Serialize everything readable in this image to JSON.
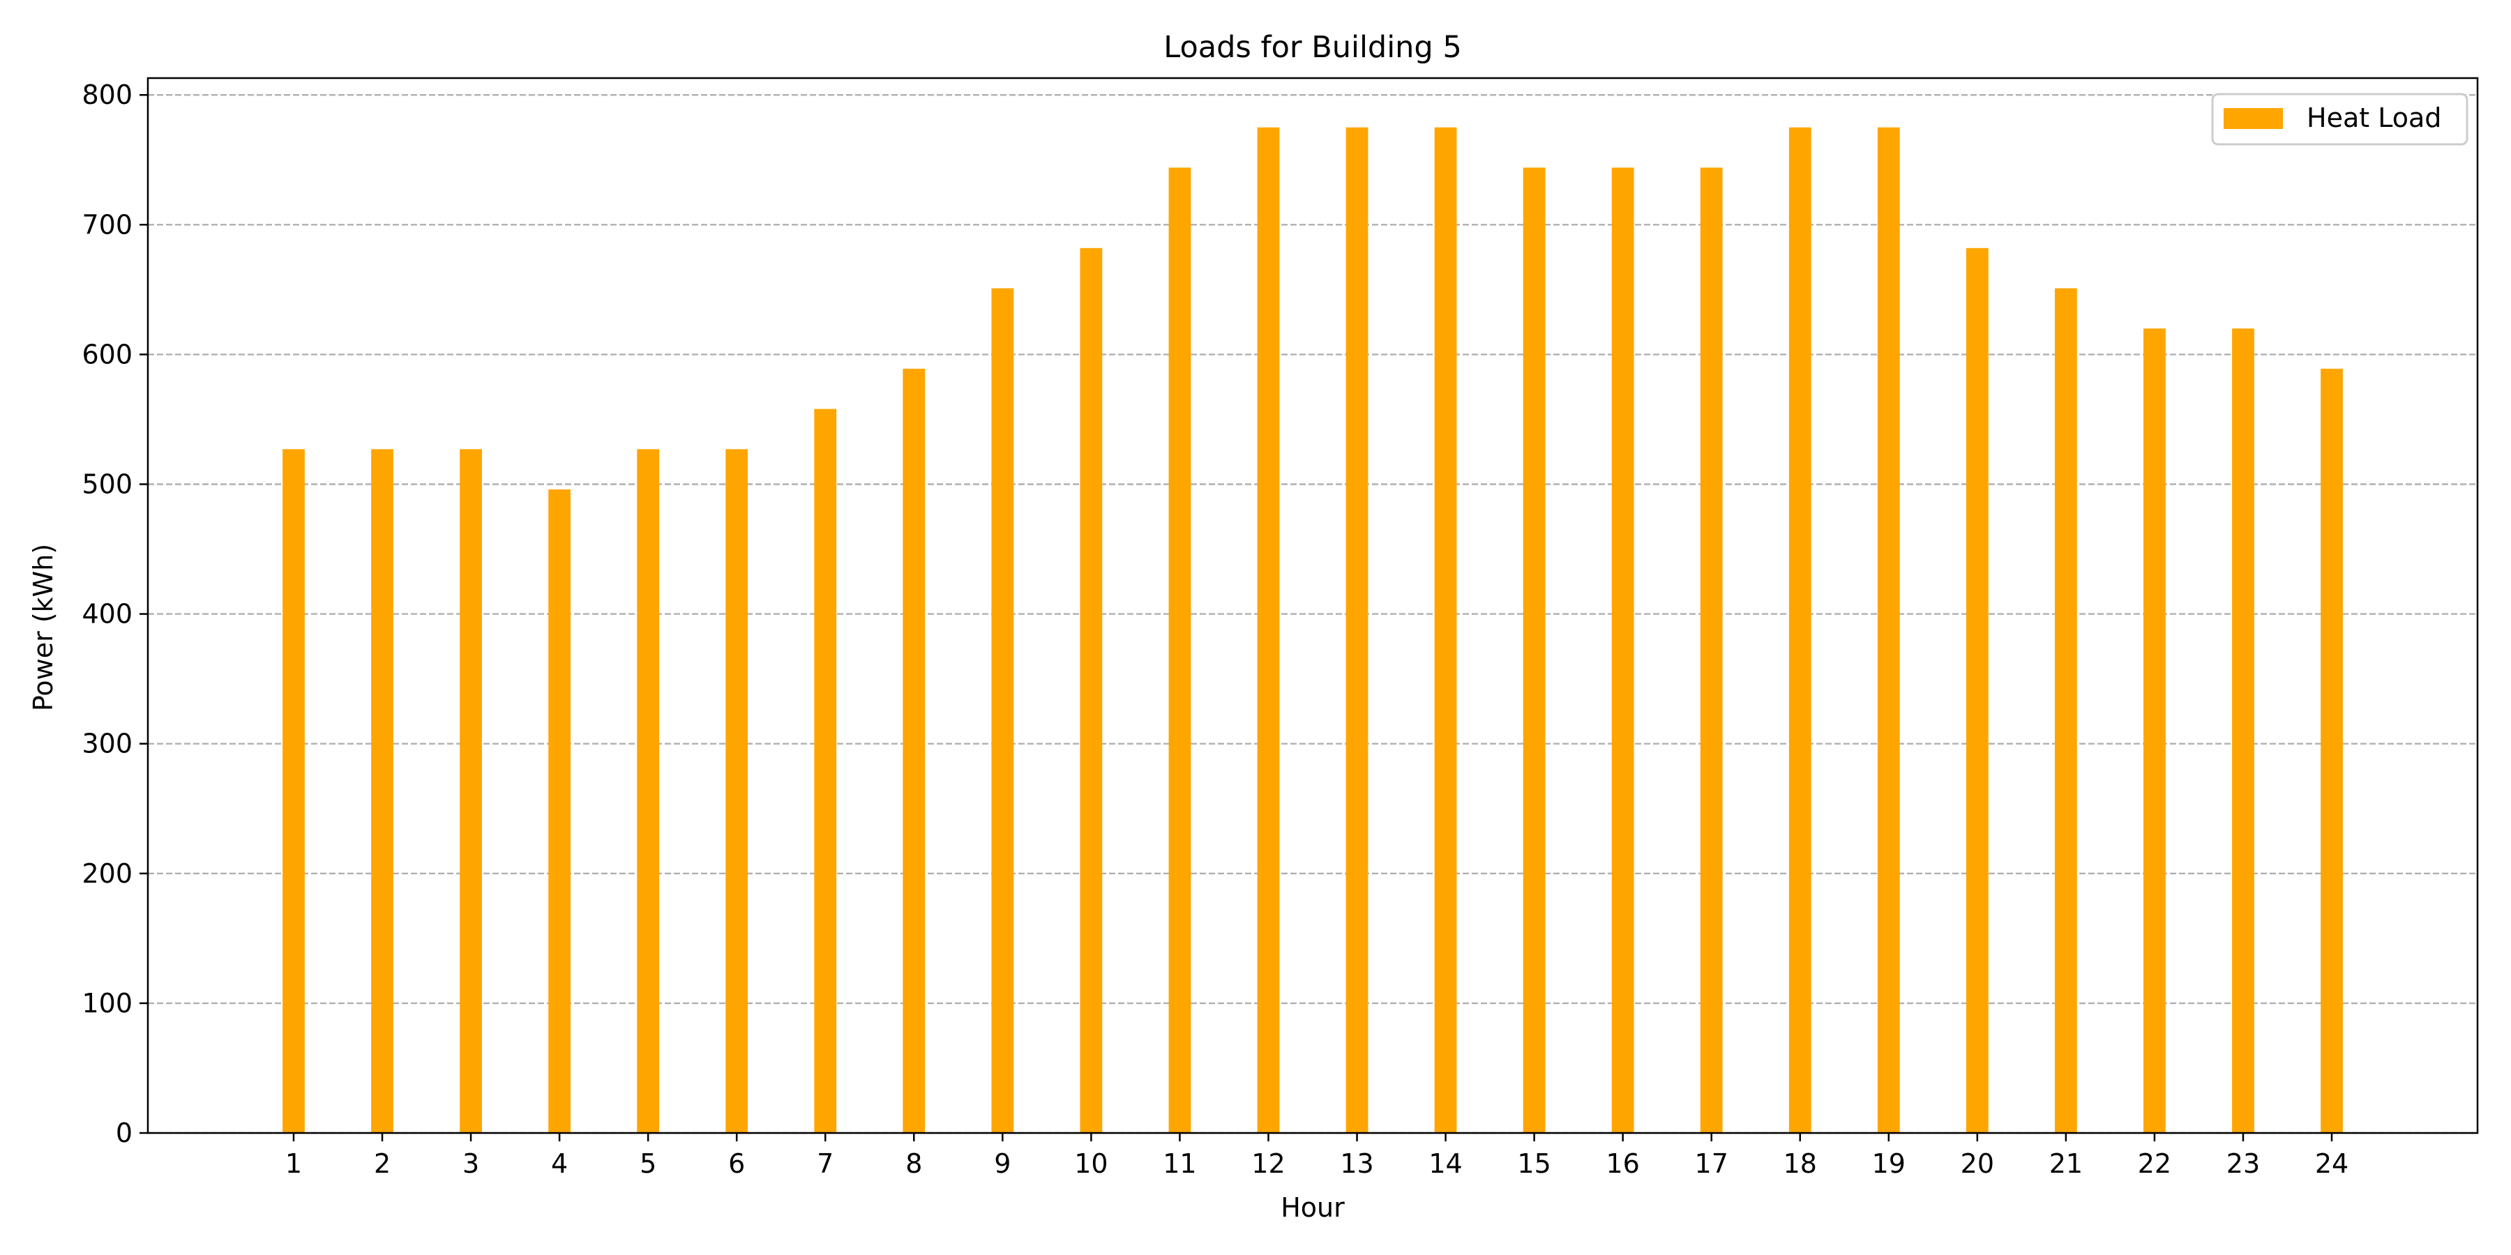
{
  "chart_data": {
    "type": "bar",
    "title": "Loads for Building 5",
    "xlabel": "Hour",
    "ylabel": "Power (kWh)",
    "categories": [
      "1",
      "2",
      "3",
      "4",
      "5",
      "6",
      "7",
      "8",
      "9",
      "10",
      "11",
      "12",
      "13",
      "14",
      "15",
      "16",
      "17",
      "18",
      "19",
      "20",
      "21",
      "22",
      "23",
      "24"
    ],
    "series": [
      {
        "name": "Heat Load",
        "color": "#ffa500",
        "values": [
          527,
          527,
          527,
          496,
          527,
          527,
          558,
          589,
          651,
          682,
          744,
          775,
          775,
          775,
          744,
          744,
          744,
          775,
          775,
          682,
          651,
          620,
          620,
          589
        ]
      }
    ],
    "ylim": [
      0,
      813
    ],
    "yticks": [
      0,
      100,
      200,
      300,
      400,
      500,
      600,
      700,
      800
    ],
    "grid": "y-dashed",
    "legend": "top-right"
  }
}
